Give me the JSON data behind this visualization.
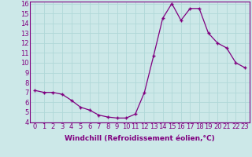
{
  "x": [
    0,
    1,
    2,
    3,
    4,
    5,
    6,
    7,
    8,
    9,
    10,
    11,
    12,
    13,
    14,
    15,
    16,
    17,
    18,
    19,
    20,
    21,
    22,
    23
  ],
  "y": [
    7.2,
    7.0,
    7.0,
    6.8,
    6.2,
    5.5,
    5.2,
    4.7,
    4.5,
    4.4,
    4.4,
    4.8,
    7.0,
    10.7,
    14.5,
    16.0,
    14.3,
    15.5,
    15.5,
    13.0,
    12.0,
    11.5,
    10.0,
    9.5
  ],
  "line_color": "#800080",
  "marker": "+",
  "marker_color": "#800080",
  "bg_color": "#cce8e8",
  "grid_color": "#b0d8d8",
  "tick_color": "#800080",
  "xlabel": "Windchill (Refroidissement éolien,°C)",
  "xlim": [
    -0.5,
    23.5
  ],
  "ylim": [
    4,
    16
  ],
  "yticks": [
    4,
    5,
    6,
    7,
    8,
    9,
    10,
    11,
    12,
    13,
    14,
    15,
    16
  ],
  "xticks": [
    0,
    1,
    2,
    3,
    4,
    5,
    6,
    7,
    8,
    9,
    10,
    11,
    12,
    13,
    14,
    15,
    16,
    17,
    18,
    19,
    20,
    21,
    22,
    23
  ],
  "font_size": 6.0,
  "label_font_size": 6.5
}
